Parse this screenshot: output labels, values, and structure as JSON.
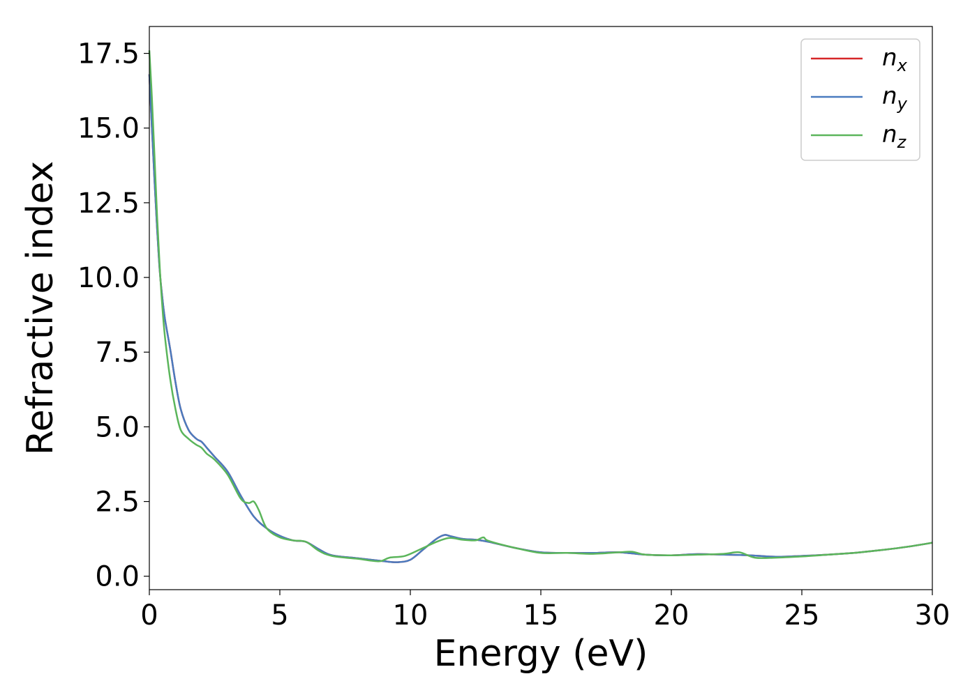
{
  "chart_data": {
    "type": "line",
    "title": "",
    "xlabel": "Energy (eV)",
    "ylabel": "Refractive index",
    "xlim": [
      0,
      30
    ],
    "ylim": [
      -0.45,
      18.4
    ],
    "xticks": [
      0,
      5,
      10,
      15,
      20,
      25,
      30
    ],
    "xtick_labels": [
      "0",
      "5",
      "10",
      "15",
      "20",
      "25",
      "30"
    ],
    "yticks": [
      0,
      2.5,
      5,
      7.5,
      10,
      12.5,
      15,
      17.5
    ],
    "ytick_labels": [
      "0.0",
      "2.5",
      "5.0",
      "7.5",
      "10.0",
      "12.5",
      "15.0",
      "17.5"
    ],
    "grid": false,
    "legend_position": "top-right",
    "series": [
      {
        "name": "n",
        "subscript": "x",
        "color": "#d62728",
        "x": [
          0,
          0.1,
          0.2,
          0.3,
          0.4,
          0.5,
          0.6,
          0.8,
          1.0,
          1.2,
          1.5,
          1.8,
          2.0,
          2.2,
          2.5,
          3.0,
          3.5,
          4.0,
          4.5,
          5.0,
          5.5,
          6.0,
          6.5,
          7.0,
          8.0,
          9.0,
          9.5,
          10.0,
          10.5,
          11.0,
          11.3,
          11.5,
          12.0,
          12.5,
          13.0,
          14.0,
          15.0,
          16.0,
          17.0,
          18.0,
          19.0,
          20.0,
          21.0,
          22.0,
          23.0,
          24.0,
          25.0,
          26.0,
          27.0,
          28.0,
          29.0,
          30.0
        ],
        "y": [
          16.8,
          15.0,
          13.2,
          11.6,
          10.2,
          9.3,
          8.6,
          7.6,
          6.5,
          5.6,
          4.9,
          4.6,
          4.5,
          4.3,
          4.0,
          3.5,
          2.7,
          2.0,
          1.6,
          1.35,
          1.2,
          1.15,
          0.9,
          0.7,
          0.6,
          0.5,
          0.47,
          0.55,
          0.9,
          1.25,
          1.38,
          1.35,
          1.25,
          1.22,
          1.15,
          0.95,
          0.8,
          0.78,
          0.78,
          0.8,
          0.72,
          0.7,
          0.74,
          0.72,
          0.7,
          0.65,
          0.68,
          0.72,
          0.78,
          0.87,
          0.98,
          1.12
        ]
      },
      {
        "name": "n",
        "subscript": "y",
        "color": "#4a7bbf",
        "x": [
          0,
          0.1,
          0.2,
          0.3,
          0.4,
          0.5,
          0.6,
          0.8,
          1.0,
          1.2,
          1.5,
          1.8,
          2.0,
          2.2,
          2.5,
          3.0,
          3.5,
          4.0,
          4.5,
          5.0,
          5.5,
          6.0,
          6.5,
          7.0,
          8.0,
          9.0,
          9.5,
          10.0,
          10.5,
          11.0,
          11.3,
          11.5,
          12.0,
          12.5,
          13.0,
          14.0,
          15.0,
          16.0,
          17.0,
          18.0,
          19.0,
          20.0,
          21.0,
          22.0,
          23.0,
          24.0,
          25.0,
          26.0,
          27.0,
          28.0,
          29.0,
          30.0
        ],
        "y": [
          16.8,
          15.0,
          13.2,
          11.6,
          10.2,
          9.3,
          8.6,
          7.6,
          6.5,
          5.6,
          4.9,
          4.6,
          4.5,
          4.3,
          4.0,
          3.5,
          2.7,
          2.0,
          1.6,
          1.35,
          1.2,
          1.15,
          0.9,
          0.7,
          0.6,
          0.5,
          0.47,
          0.55,
          0.9,
          1.25,
          1.38,
          1.35,
          1.25,
          1.22,
          1.15,
          0.95,
          0.8,
          0.78,
          0.78,
          0.8,
          0.72,
          0.7,
          0.74,
          0.72,
          0.7,
          0.65,
          0.68,
          0.72,
          0.78,
          0.87,
          0.98,
          1.12
        ]
      },
      {
        "name": "n",
        "subscript": "z",
        "color": "#5bb55b",
        "x": [
          0,
          0.1,
          0.2,
          0.3,
          0.4,
          0.5,
          0.6,
          0.8,
          1.0,
          1.2,
          1.5,
          1.8,
          2.0,
          2.2,
          2.5,
          3.0,
          3.5,
          3.8,
          4.0,
          4.2,
          4.5,
          5.0,
          5.5,
          6.0,
          6.5,
          7.0,
          8.0,
          8.8,
          9.2,
          9.8,
          10.5,
          11.0,
          11.5,
          12.0,
          12.5,
          12.8,
          13.0,
          14.0,
          15.0,
          16.0,
          17.0,
          18.0,
          18.5,
          19.0,
          20.0,
          21.0,
          22.0,
          22.6,
          23.2,
          24.0,
          25.0,
          26.0,
          27.0,
          28.0,
          29.0,
          30.0
        ],
        "y": [
          17.6,
          16.0,
          14.0,
          12.0,
          10.3,
          9.0,
          8.0,
          6.6,
          5.6,
          4.9,
          4.6,
          4.4,
          4.3,
          4.1,
          3.9,
          3.4,
          2.6,
          2.45,
          2.5,
          2.2,
          1.6,
          1.3,
          1.2,
          1.15,
          0.85,
          0.68,
          0.58,
          0.5,
          0.62,
          0.68,
          0.95,
          1.15,
          1.28,
          1.22,
          1.2,
          1.3,
          1.18,
          0.95,
          0.78,
          0.78,
          0.75,
          0.8,
          0.82,
          0.72,
          0.7,
          0.72,
          0.75,
          0.8,
          0.62,
          0.62,
          0.66,
          0.72,
          0.78,
          0.87,
          0.98,
          1.12
        ]
      }
    ]
  }
}
